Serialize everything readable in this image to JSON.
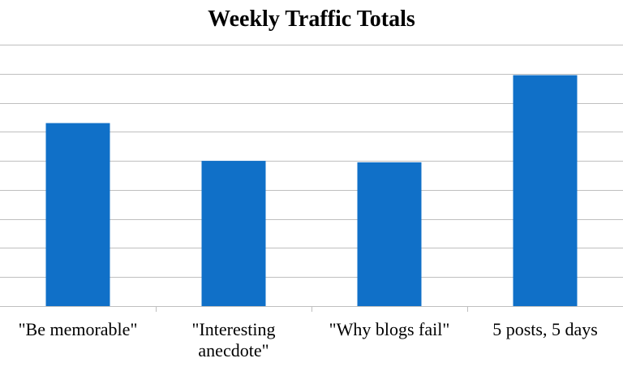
{
  "chart_data": {
    "type": "bar",
    "title": "Weekly Traffic Totals",
    "categories": [
      "\"Be memorable\"",
      "\"Interesting anecdote\"",
      "\"Why blogs fail\"",
      "5 posts, 5 days"
    ],
    "category_lines": [
      [
        "\"Be memorable\""
      ],
      [
        "\"Interesting",
        "anecdote\""
      ],
      [
        "\"Why blogs fail\""
      ],
      [
        "5 posts, 5 days"
      ]
    ],
    "series": [
      {
        "values": [
          6.3,
          5.0,
          4.95,
          7.95
        ]
      }
    ],
    "ylim": [
      0,
      9
    ],
    "y_gridlines": [
      1,
      2,
      3,
      4,
      5,
      6,
      7,
      8,
      9
    ],
    "y_tick_labels_shown": false,
    "grid": true,
    "legend": "none",
    "colors": {
      "bar": "#1070C8",
      "gridline": "#BFBFBF",
      "axis": "#BFBFBF",
      "background": "#FFFFFF",
      "text": "#000000"
    }
  }
}
